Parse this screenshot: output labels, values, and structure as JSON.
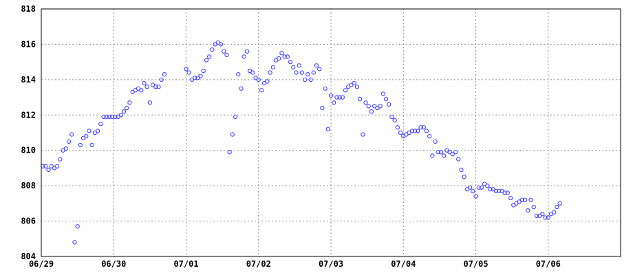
{
  "chart_data": {
    "type": "scatter",
    "title": "",
    "xlabel": "",
    "ylabel": "",
    "grid": true,
    "x_tick_labels": [
      "06/29",
      "06/30",
      "07/01",
      "07/02",
      "07/03",
      "07/04",
      "07/05",
      "07/06"
    ],
    "y_tick_labels": [
      "804",
      "806",
      "808",
      "810",
      "812",
      "814",
      "816",
      "818"
    ],
    "xlim": [
      0,
      8
    ],
    "ylim": [
      804,
      818
    ],
    "x_unit": "days since 06/29",
    "marker_color": "#4040ff",
    "series": [
      {
        "name": "",
        "points": [
          [
            0.02,
            809.1
          ],
          [
            0.06,
            809.1
          ],
          [
            0.1,
            808.9
          ],
          [
            0.14,
            809.1
          ],
          [
            0.18,
            809.0
          ],
          [
            0.22,
            809.1
          ],
          [
            0.26,
            809.5
          ],
          [
            0.3,
            810.0
          ],
          [
            0.34,
            810.1
          ],
          [
            0.38,
            810.5
          ],
          [
            0.42,
            810.9
          ],
          [
            0.46,
            804.8
          ],
          [
            0.5,
            805.7
          ],
          [
            0.54,
            810.3
          ],
          [
            0.58,
            810.7
          ],
          [
            0.62,
            810.8
          ],
          [
            0.66,
            811.1
          ],
          [
            0.7,
            810.3
          ],
          [
            0.74,
            811.0
          ],
          [
            0.78,
            811.1
          ],
          [
            0.82,
            811.5
          ],
          [
            0.86,
            811.9
          ],
          [
            0.9,
            811.9
          ],
          [
            0.94,
            811.9
          ],
          [
            0.98,
            811.9
          ],
          [
            1.02,
            811.9
          ],
          [
            1.06,
            811.9
          ],
          [
            1.1,
            812.0
          ],
          [
            1.14,
            812.2
          ],
          [
            1.18,
            812.4
          ],
          [
            1.22,
            812.7
          ],
          [
            1.26,
            813.3
          ],
          [
            1.3,
            813.4
          ],
          [
            1.34,
            813.5
          ],
          [
            1.38,
            813.4
          ],
          [
            1.42,
            813.8
          ],
          [
            1.46,
            813.6
          ],
          [
            1.5,
            812.7
          ],
          [
            1.54,
            813.7
          ],
          [
            1.58,
            813.6
          ],
          [
            1.62,
            813.6
          ],
          [
            1.66,
            814.0
          ],
          [
            1.7,
            814.3
          ],
          [
            2.0,
            814.6
          ],
          [
            2.04,
            814.4
          ],
          [
            2.08,
            814.0
          ],
          [
            2.12,
            814.1
          ],
          [
            2.16,
            814.1
          ],
          [
            2.2,
            814.2
          ],
          [
            2.24,
            814.5
          ],
          [
            2.28,
            815.1
          ],
          [
            2.32,
            815.3
          ],
          [
            2.36,
            815.7
          ],
          [
            2.4,
            816.0
          ],
          [
            2.44,
            816.1
          ],
          [
            2.48,
            816.0
          ],
          [
            2.52,
            815.6
          ],
          [
            2.56,
            815.4
          ],
          [
            2.6,
            809.9
          ],
          [
            2.64,
            810.9
          ],
          [
            2.68,
            811.9
          ],
          [
            2.72,
            814.3
          ],
          [
            2.76,
            813.5
          ],
          [
            2.8,
            815.3
          ],
          [
            2.84,
            815.6
          ],
          [
            2.88,
            814.5
          ],
          [
            2.92,
            814.4
          ],
          [
            2.96,
            814.1
          ],
          [
            3.0,
            814.0
          ],
          [
            3.04,
            813.4
          ],
          [
            3.08,
            813.8
          ],
          [
            3.12,
            813.9
          ],
          [
            3.16,
            814.4
          ],
          [
            3.2,
            814.7
          ],
          [
            3.24,
            815.1
          ],
          [
            3.28,
            815.2
          ],
          [
            3.32,
            815.5
          ],
          [
            3.36,
            815.3
          ],
          [
            3.4,
            815.3
          ],
          [
            3.44,
            815.0
          ],
          [
            3.48,
            814.7
          ],
          [
            3.52,
            814.4
          ],
          [
            3.56,
            814.8
          ],
          [
            3.6,
            814.4
          ],
          [
            3.64,
            814.0
          ],
          [
            3.68,
            814.3
          ],
          [
            3.72,
            814.0
          ],
          [
            3.76,
            814.4
          ],
          [
            3.8,
            814.8
          ],
          [
            3.84,
            814.6
          ],
          [
            3.88,
            812.4
          ],
          [
            3.92,
            813.5
          ],
          [
            3.96,
            811.2
          ],
          [
            4.0,
            813.1
          ],
          [
            4.04,
            812.7
          ],
          [
            4.08,
            813.0
          ],
          [
            4.12,
            813.0
          ],
          [
            4.16,
            813.0
          ],
          [
            4.2,
            813.4
          ],
          [
            4.24,
            813.6
          ],
          [
            4.28,
            813.7
          ],
          [
            4.32,
            813.8
          ],
          [
            4.36,
            813.6
          ],
          [
            4.4,
            812.9
          ],
          [
            4.44,
            810.9
          ],
          [
            4.48,
            812.7
          ],
          [
            4.52,
            812.5
          ],
          [
            4.56,
            812.2
          ],
          [
            4.6,
            812.5
          ],
          [
            4.64,
            812.4
          ],
          [
            4.68,
            812.5
          ],
          [
            4.72,
            813.2
          ],
          [
            4.76,
            812.9
          ],
          [
            4.8,
            812.6
          ],
          [
            4.84,
            811.9
          ],
          [
            4.88,
            811.7
          ],
          [
            4.92,
            811.3
          ],
          [
            4.96,
            811.0
          ],
          [
            5.0,
            810.8
          ],
          [
            5.04,
            810.9
          ],
          [
            5.08,
            811.0
          ],
          [
            5.12,
            811.1
          ],
          [
            5.16,
            811.1
          ],
          [
            5.2,
            811.1
          ],
          [
            5.24,
            811.3
          ],
          [
            5.28,
            811.3
          ],
          [
            5.32,
            811.1
          ],
          [
            5.36,
            810.8
          ],
          [
            5.4,
            809.7
          ],
          [
            5.44,
            810.5
          ],
          [
            5.48,
            809.9
          ],
          [
            5.52,
            809.9
          ],
          [
            5.56,
            809.7
          ],
          [
            5.6,
            810.0
          ],
          [
            5.64,
            809.9
          ],
          [
            5.68,
            809.8
          ],
          [
            5.72,
            809.9
          ],
          [
            5.76,
            809.5
          ],
          [
            5.8,
            808.9
          ],
          [
            5.84,
            808.5
          ],
          [
            5.88,
            807.8
          ],
          [
            5.92,
            807.9
          ],
          [
            5.96,
            807.7
          ],
          [
            6.0,
            807.4
          ],
          [
            6.04,
            807.9
          ],
          [
            6.08,
            807.9
          ],
          [
            6.12,
            808.1
          ],
          [
            6.16,
            808.0
          ],
          [
            6.2,
            807.8
          ],
          [
            6.24,
            807.8
          ],
          [
            6.28,
            807.7
          ],
          [
            6.32,
            807.7
          ],
          [
            6.36,
            807.7
          ],
          [
            6.4,
            807.6
          ],
          [
            6.44,
            807.6
          ],
          [
            6.48,
            807.3
          ],
          [
            6.52,
            806.9
          ],
          [
            6.56,
            807.0
          ],
          [
            6.6,
            807.1
          ],
          [
            6.64,
            807.2
          ],
          [
            6.68,
            807.2
          ],
          [
            6.72,
            806.6
          ],
          [
            6.76,
            807.2
          ],
          [
            6.8,
            806.8
          ],
          [
            6.84,
            806.3
          ],
          [
            6.88,
            806.3
          ],
          [
            6.92,
            806.4
          ],
          [
            6.96,
            806.2
          ],
          [
            7.0,
            806.2
          ],
          [
            7.04,
            806.4
          ],
          [
            7.08,
            806.5
          ],
          [
            7.12,
            806.8
          ],
          [
            7.16,
            807.0
          ]
        ]
      }
    ]
  }
}
